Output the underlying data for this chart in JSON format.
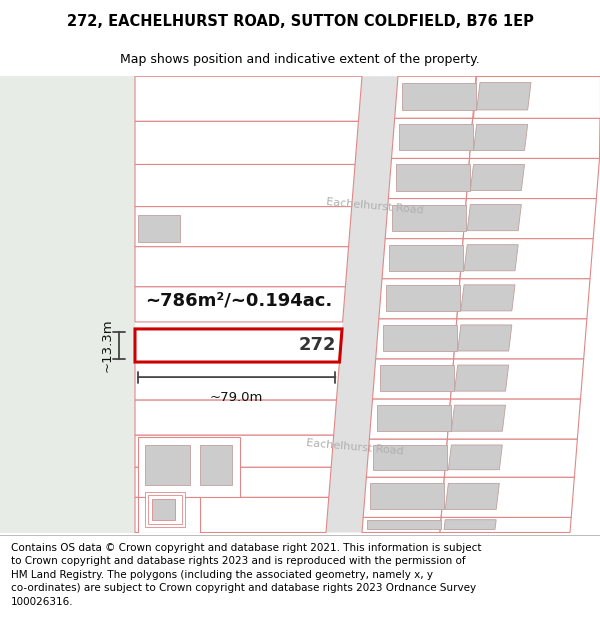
{
  "title": "272, EACHELHURST ROAD, SUTTON COLDFIELD, B76 1EP",
  "subtitle": "Map shows position and indicative extent of the property.",
  "footer": "Contains OS data © Crown copyright and database right 2021. This information is subject\nto Crown copyright and database rights 2023 and is reproduced with the permission of\nHM Land Registry. The polygons (including the associated geometry, namely x, y\nco-ordinates) are subject to Crown copyright and database rights 2023 Ordnance Survey\n100026316.",
  "title_fontsize": 10.5,
  "subtitle_fontsize": 9.0,
  "footer_fontsize": 7.5,
  "area_text": "~786m²/~0.194ac.",
  "width_text": "~79.0m",
  "height_text": "~13.3m",
  "prop_num": "272",
  "road_name": "Eachelhurst Road",
  "plot_edge": "#e08888",
  "highlight_edge": "#cc0000",
  "building_fill": "#cccccc",
  "building_edge": "#c0a0a0",
  "road_fill": "#e8e8e8",
  "left_green": "#e8ece6",
  "map_bg": "white"
}
